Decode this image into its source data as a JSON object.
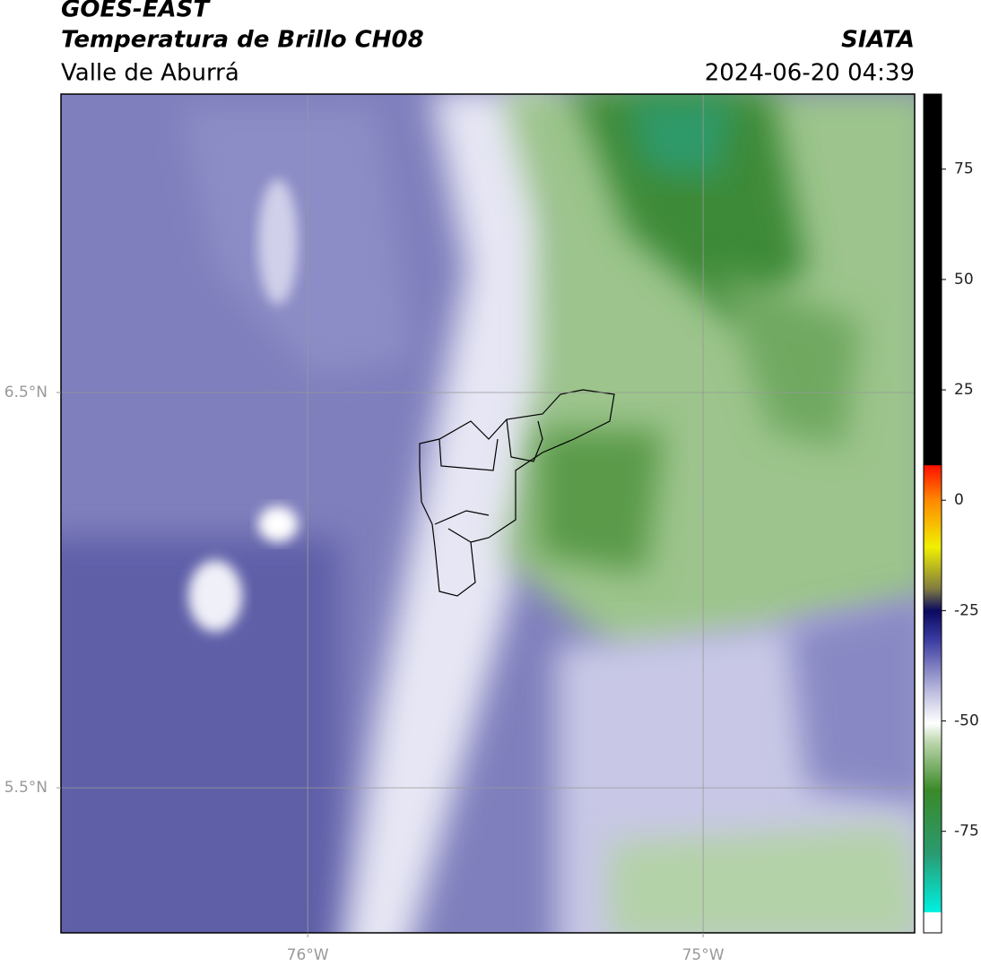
{
  "header": {
    "title": "GOES-EAST",
    "subtitle": "Temperatura de Brillo CH08",
    "region": "Valle de Aburrá",
    "source": "SIATA",
    "datetime": "2024-06-20 04:39"
  },
  "map": {
    "xlim": [
      -76.624,
      -74.465
    ],
    "ylim": [
      5.133,
      7.255
    ],
    "xticks": [
      {
        "value": -76,
        "label": "76°W"
      },
      {
        "value": -75,
        "label": "75°W"
      }
    ],
    "yticks": [
      {
        "value": 6.5,
        "label": "6.5°N"
      },
      {
        "value": 5.5,
        "label": "5.5°N"
      }
    ],
    "grid": true,
    "colorbar": {
      "lim": [
        -98,
        92
      ],
      "ticks": [
        75,
        50,
        25,
        0,
        -25,
        -50,
        -75
      ]
    }
  }
}
